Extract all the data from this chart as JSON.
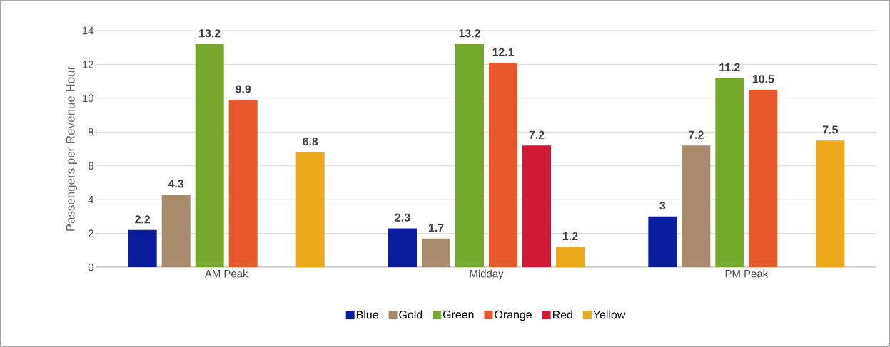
{
  "chart_data": {
    "type": "bar",
    "ylabel": "Passengers per Revenue Hour",
    "categories": [
      "AM Peak",
      "Midday",
      "PM Peak"
    ],
    "series": [
      {
        "name": "Blue",
        "color": "#0a1d9e",
        "values": [
          2.2,
          2.3,
          3
        ]
      },
      {
        "name": "Gold",
        "color": "#a68b6c",
        "values": [
          4.3,
          1.7,
          7.2
        ]
      },
      {
        "name": "Green",
        "color": "#77a82e",
        "values": [
          13.2,
          13.2,
          11.2
        ]
      },
      {
        "name": "Orange",
        "color": "#e8582a",
        "values": [
          9.9,
          12.1,
          10.5
        ]
      },
      {
        "name": "Red",
        "color": "#d01a35",
        "values": [
          null,
          7.2,
          null
        ]
      },
      {
        "name": "Yellow",
        "color": "#eea91b",
        "values": [
          6.8,
          1.2,
          7.5
        ]
      }
    ],
    "ylim": [
      0,
      14
    ],
    "yticks": [
      0,
      2,
      4,
      6,
      8,
      10,
      12,
      14
    ],
    "grid": "y",
    "legend": "bottom",
    "data_labels": true
  }
}
